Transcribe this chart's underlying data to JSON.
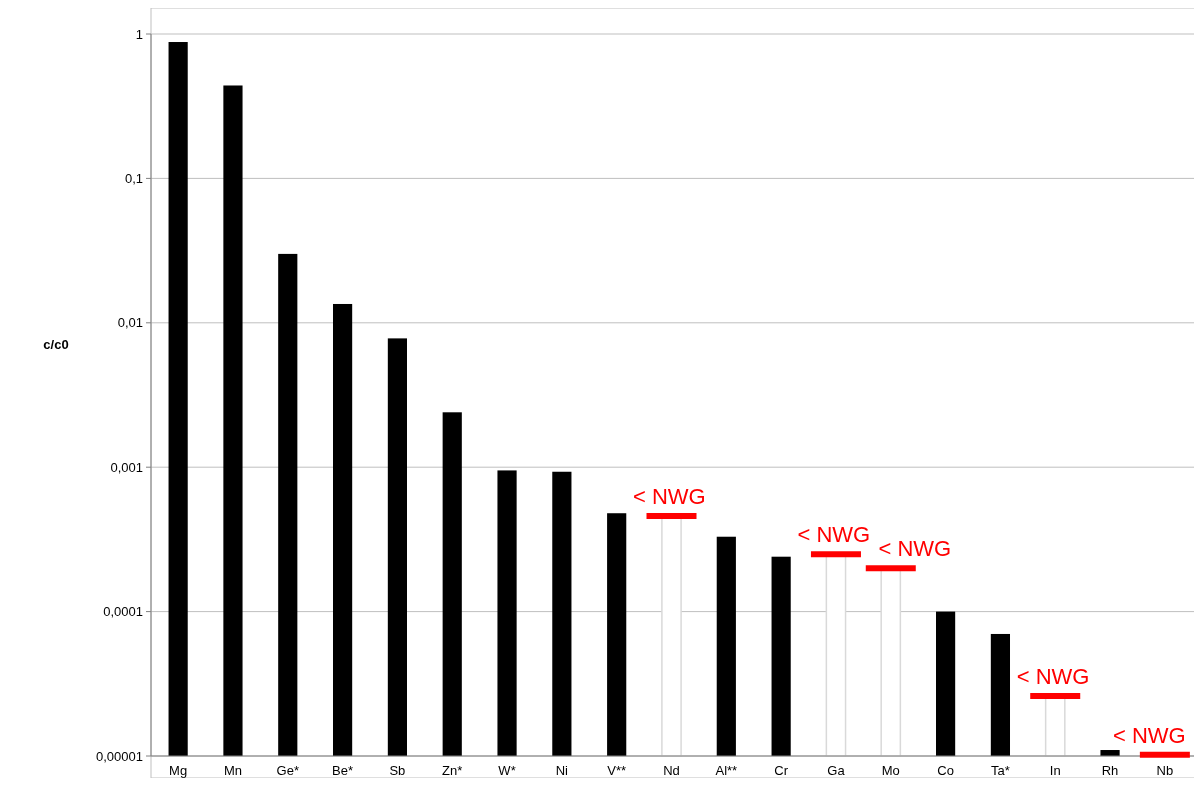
{
  "chart_data": {
    "type": "bar",
    "ylabel": "c/c0",
    "log": true,
    "grid": "y",
    "categories": [
      "Mg",
      "Mn",
      "Ge*",
      "Be*",
      "Sb",
      "Zn*",
      "W*",
      "Ni",
      "V**",
      "Nd",
      "Al**",
      "Cr",
      "Ga",
      "Mo",
      "Co",
      "Ta*",
      "In",
      "Rh",
      "Nb"
    ],
    "ylim": [
      1e-05,
      1
    ],
    "yticks": [
      {
        "value": 1e-05,
        "label": "0,00001"
      },
      {
        "value": 0.0001,
        "label": "0,0001"
      },
      {
        "value": 0.001,
        "label": "0,001"
      },
      {
        "value": 0.01,
        "label": "0,01"
      },
      {
        "value": 0.1,
        "label": "0,1"
      },
      1
    ],
    "series": [
      {
        "color": "#000000",
        "values": [
          0.88,
          0.44,
          0.03,
          0.0135,
          0.0078,
          0.0024,
          0.00095,
          0.00093,
          0.00048,
          null,
          0.00033,
          0.00024,
          null,
          null,
          0.0001,
          7e-05,
          null,
          1.1e-05,
          null
        ]
      },
      {
        "color": "#d9d9d9",
        "values": [
          null,
          null,
          null,
          null,
          null,
          null,
          null,
          null,
          null,
          0.00046,
          null,
          null,
          0.00025,
          0.0002,
          null,
          null,
          2.6e-05,
          null,
          1.02e-05
        ]
      }
    ],
    "annotations": [
      {
        "text": "< NWG",
        "x": "Nd",
        "y": 0.00046
      },
      {
        "text": "< NWG",
        "x": "Ga",
        "y": 0.00025
      },
      {
        "text": "< NWG",
        "x": "Mo",
        "y": 0.0002
      },
      {
        "text": "< NWG",
        "x": "In",
        "y": 2.6e-05
      },
      {
        "text": "< NWG",
        "x": "Nb",
        "y": 1.02e-05
      }
    ]
  }
}
